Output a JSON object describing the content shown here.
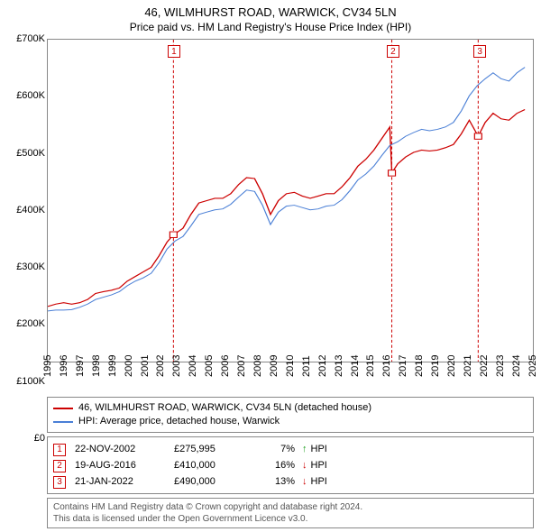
{
  "header": {
    "title": "46, WILMHURST ROAD, WARWICK, CV34 5LN",
    "subtitle": "Price paid vs. HM Land Registry's House Price Index (HPI)"
  },
  "chart": {
    "type": "line",
    "background_color": "#ffffff",
    "border_color": "#888888",
    "ylim": [
      0,
      700000
    ],
    "ytick_values": [
      0,
      100000,
      200000,
      300000,
      400000,
      500000,
      600000,
      700000
    ],
    "ytick_labels": [
      "£0",
      "£100K",
      "£200K",
      "£300K",
      "£400K",
      "£500K",
      "£600K",
      "£700K"
    ],
    "ytick_fontsize": 11,
    "xlim": [
      1995,
      2025.5
    ],
    "xtick_values": [
      1995,
      1996,
      1997,
      1998,
      1999,
      2000,
      2001,
      2002,
      2003,
      2004,
      2005,
      2006,
      2007,
      2008,
      2009,
      2010,
      2011,
      2012,
      2013,
      2014,
      2015,
      2016,
      2017,
      2018,
      2019,
      2020,
      2021,
      2022,
      2023,
      2024,
      2025
    ],
    "xtick_labels": [
      "1995",
      "1996",
      "1997",
      "1998",
      "1999",
      "2000",
      "2001",
      "2002",
      "2003",
      "2004",
      "2005",
      "2006",
      "2007",
      "2008",
      "2009",
      "2010",
      "2011",
      "2012",
      "2013",
      "2014",
      "2015",
      "2016",
      "2017",
      "2018",
      "2019",
      "2020",
      "2021",
      "2022",
      "2023",
      "2024",
      "2025"
    ],
    "xtick_fontsize": 11,
    "xtick_rotation": -90,
    "series": [
      {
        "name": "subject-property",
        "label": "46, WILMHURST ROAD, WARWICK, CV34 5LN (detached house)",
        "color": "#cc0000",
        "line_width": 1.4,
        "data": [
          [
            1995.0,
            120000
          ],
          [
            1995.5,
            125000
          ],
          [
            1996.0,
            128000
          ],
          [
            1996.5,
            125000
          ],
          [
            1997.0,
            128000
          ],
          [
            1997.5,
            135000
          ],
          [
            1998.0,
            148000
          ],
          [
            1998.5,
            152000
          ],
          [
            1999.0,
            155000
          ],
          [
            1999.5,
            160000
          ],
          [
            2000.0,
            175000
          ],
          [
            2000.5,
            185000
          ],
          [
            2001.0,
            195000
          ],
          [
            2001.5,
            205000
          ],
          [
            2002.0,
            230000
          ],
          [
            2002.5,
            260000
          ],
          [
            2002.9,
            275995
          ],
          [
            2003.0,
            278000
          ],
          [
            2003.5,
            290000
          ],
          [
            2004.0,
            320000
          ],
          [
            2004.5,
            345000
          ],
          [
            2005.0,
            350000
          ],
          [
            2005.5,
            355000
          ],
          [
            2006.0,
            355000
          ],
          [
            2006.5,
            365000
          ],
          [
            2007.0,
            385000
          ],
          [
            2007.5,
            400000
          ],
          [
            2008.0,
            398000
          ],
          [
            2008.5,
            365000
          ],
          [
            2009.0,
            320000
          ],
          [
            2009.5,
            350000
          ],
          [
            2010.0,
            365000
          ],
          [
            2010.5,
            368000
          ],
          [
            2011.0,
            360000
          ],
          [
            2011.5,
            355000
          ],
          [
            2012.0,
            360000
          ],
          [
            2012.5,
            365000
          ],
          [
            2013.0,
            365000
          ],
          [
            2013.5,
            380000
          ],
          [
            2014.0,
            400000
          ],
          [
            2014.5,
            425000
          ],
          [
            2015.0,
            440000
          ],
          [
            2015.5,
            460000
          ],
          [
            2016.0,
            485000
          ],
          [
            2016.5,
            510000
          ],
          [
            2016.63,
            410000
          ],
          [
            2017.0,
            430000
          ],
          [
            2017.5,
            445000
          ],
          [
            2018.0,
            455000
          ],
          [
            2018.5,
            460000
          ],
          [
            2019.0,
            458000
          ],
          [
            2019.5,
            460000
          ],
          [
            2020.0,
            465000
          ],
          [
            2020.5,
            472000
          ],
          [
            2021.0,
            495000
          ],
          [
            2021.5,
            525000
          ],
          [
            2022.06,
            490000
          ],
          [
            2022.5,
            520000
          ],
          [
            2023.0,
            540000
          ],
          [
            2023.5,
            528000
          ],
          [
            2024.0,
            525000
          ],
          [
            2024.5,
            540000
          ],
          [
            2025.0,
            548000
          ]
        ]
      },
      {
        "name": "hpi-warwick-detached",
        "label": "HPI: Average price, detached house, Warwick",
        "color": "#4a7fd6",
        "line_width": 1.2,
        "data": [
          [
            1995.0,
            110000
          ],
          [
            1995.5,
            112000
          ],
          [
            1996.0,
            112000
          ],
          [
            1996.5,
            113000
          ],
          [
            1997.0,
            118000
          ],
          [
            1997.5,
            125000
          ],
          [
            1998.0,
            135000
          ],
          [
            1998.5,
            140000
          ],
          [
            1999.0,
            145000
          ],
          [
            1999.5,
            152000
          ],
          [
            2000.0,
            165000
          ],
          [
            2000.5,
            175000
          ],
          [
            2001.0,
            182000
          ],
          [
            2001.5,
            192000
          ],
          [
            2002.0,
            215000
          ],
          [
            2002.5,
            245000
          ],
          [
            2003.0,
            262000
          ],
          [
            2003.5,
            272000
          ],
          [
            2004.0,
            295000
          ],
          [
            2004.5,
            320000
          ],
          [
            2005.0,
            325000
          ],
          [
            2005.5,
            330000
          ],
          [
            2006.0,
            332000
          ],
          [
            2006.5,
            342000
          ],
          [
            2007.0,
            358000
          ],
          [
            2007.5,
            373000
          ],
          [
            2008.0,
            370000
          ],
          [
            2008.5,
            340000
          ],
          [
            2009.0,
            298000
          ],
          [
            2009.5,
            325000
          ],
          [
            2010.0,
            338000
          ],
          [
            2010.5,
            340000
          ],
          [
            2011.0,
            335000
          ],
          [
            2011.5,
            330000
          ],
          [
            2012.0,
            332000
          ],
          [
            2012.5,
            338000
          ],
          [
            2013.0,
            340000
          ],
          [
            2013.5,
            352000
          ],
          [
            2014.0,
            372000
          ],
          [
            2014.5,
            395000
          ],
          [
            2015.0,
            408000
          ],
          [
            2015.5,
            425000
          ],
          [
            2016.0,
            448000
          ],
          [
            2016.5,
            470000
          ],
          [
            2017.0,
            478000
          ],
          [
            2017.5,
            490000
          ],
          [
            2018.0,
            498000
          ],
          [
            2018.5,
            505000
          ],
          [
            2019.0,
            502000
          ],
          [
            2019.5,
            505000
          ],
          [
            2020.0,
            510000
          ],
          [
            2020.5,
            520000
          ],
          [
            2021.0,
            545000
          ],
          [
            2021.5,
            578000
          ],
          [
            2022.0,
            600000
          ],
          [
            2022.5,
            615000
          ],
          [
            2023.0,
            628000
          ],
          [
            2023.5,
            615000
          ],
          [
            2024.0,
            610000
          ],
          [
            2024.5,
            628000
          ],
          [
            2025.0,
            640000
          ]
        ]
      }
    ],
    "transaction_markers": [
      {
        "n": "1",
        "x": 2002.9,
        "y": 275995,
        "line_color": "#cc0000",
        "dash": "4,3",
        "marker_color": "#cc0000",
        "marker_fill": "#ffffff",
        "marker_size": 8
      },
      {
        "n": "2",
        "x": 2016.63,
        "y": 410000,
        "line_color": "#cc0000",
        "dash": "4,3",
        "marker_color": "#cc0000",
        "marker_fill": "#ffffff",
        "marker_size": 8
      },
      {
        "n": "3",
        "x": 2022.06,
        "y": 490000,
        "line_color": "#cc0000",
        "dash": "4,3",
        "marker_color": "#cc0000",
        "marker_fill": "#ffffff",
        "marker_size": 8
      }
    ],
    "marker_badge": {
      "border_color": "#cc0000",
      "bg_color": "#ffffff",
      "text_color": "#cc0000",
      "fontsize": 10
    },
    "legend": {
      "border_color": "#888888",
      "fontsize": 11
    }
  },
  "annotations": {
    "border_color": "#888888",
    "fontsize": 11,
    "badge": {
      "border_color": "#cc0000",
      "text_color": "#cc0000"
    },
    "col_widths": {
      "badge": 24,
      "date": 110,
      "price": 90,
      "pct": 48
    },
    "rows": [
      {
        "n": "1",
        "date": "22-NOV-2002",
        "price": "£275,995",
        "pct": "7%",
        "arrow": "↑",
        "suffix": "HPI",
        "arrow_color": "#1a9c1a"
      },
      {
        "n": "2",
        "date": "19-AUG-2016",
        "price": "£410,000",
        "pct": "16%",
        "arrow": "↓",
        "suffix": "HPI",
        "arrow_color": "#cc0000"
      },
      {
        "n": "3",
        "date": "21-JAN-2022",
        "price": "£490,000",
        "pct": "13%",
        "arrow": "↓",
        "suffix": "HPI",
        "arrow_color": "#cc0000"
      }
    ]
  },
  "attribution": {
    "line1": "Contains HM Land Registry data © Crown copyright and database right 2024.",
    "line2": "This data is licensed under the Open Government Licence v3.0.",
    "color": "#555555",
    "fontsize": 10
  }
}
